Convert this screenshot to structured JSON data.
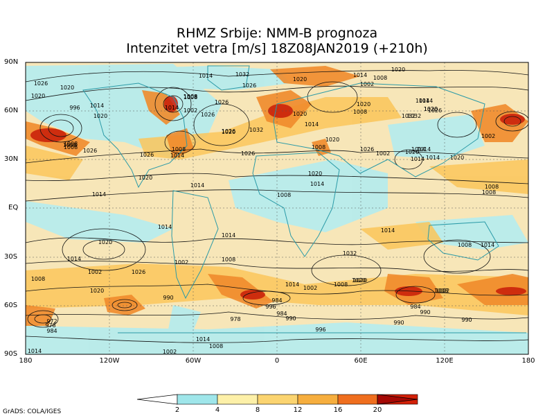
{
  "title_line1": "RHMZ Srbije: NMM-B prognoza",
  "title_line2": "Intenzitet vetra [m/s] 18Z08JAN2019 (+210h)",
  "lat_labels": [
    "90N",
    "60N",
    "30N",
    "EQ",
    "30S",
    "60S",
    "90S"
  ],
  "lon_labels": [
    "180",
    "120W",
    "60W",
    "0",
    "60E",
    "120E",
    "180"
  ],
  "pressure_labels": [
    "1020",
    "1026",
    "1020",
    "1014",
    "1008",
    "1032",
    "1026",
    "1020",
    "1014",
    "1002",
    "1008",
    "1026",
    "1014",
    "1020",
    "1020",
    "1008",
    "1026",
    "1020",
    "996",
    "1020",
    "1008",
    "1032",
    "1020",
    "1026",
    "1026",
    "1014",
    "1020",
    "1002",
    "1008",
    "1014",
    "1020",
    "1014",
    "1032",
    "1026",
    "1014",
    "1026",
    "1008",
    "1014",
    "1008",
    "1020",
    "1026",
    "1008",
    "1002",
    "1020",
    "1014",
    "1014",
    "1014",
    "1008",
    "1014",
    "1008",
    "1020",
    "1026",
    "1008",
    "1014",
    "1020",
    "1014",
    "1020",
    "1032",
    "1002",
    "1014",
    "1014",
    "1014",
    "1008",
    "1002",
    "1020",
    "1008",
    "1014",
    "1026",
    "1020",
    "1020",
    "1008",
    "1008",
    "1002",
    "1014",
    "1020",
    "1032",
    "1014",
    "1014",
    "1002",
    "1008",
    "1008",
    "990",
    "990",
    "996",
    "984",
    "990",
    "984",
    "978",
    "972",
    "978",
    "984",
    "984",
    "990",
    "996",
    "990",
    "1014",
    "1002",
    "1008",
    "1014",
    "1008",
    "1002"
  ],
  "colorbar": {
    "values": [
      "2",
      "4",
      "8",
      "12",
      "16",
      "20"
    ],
    "colors": [
      "#9fe6ea",
      "#fdf0a8",
      "#fbd470",
      "#f6ae3e",
      "#ef6e1e",
      "#d32008",
      "#a60804"
    ]
  },
  "colors": {
    "ocean_light": "#f7e6b8",
    "calm": "#b4ecef",
    "gusty": "#fbc65a",
    "strong": "#f08b2c",
    "extreme": "#c81b08"
  },
  "credit": "GrADS: COLA/IGES"
}
